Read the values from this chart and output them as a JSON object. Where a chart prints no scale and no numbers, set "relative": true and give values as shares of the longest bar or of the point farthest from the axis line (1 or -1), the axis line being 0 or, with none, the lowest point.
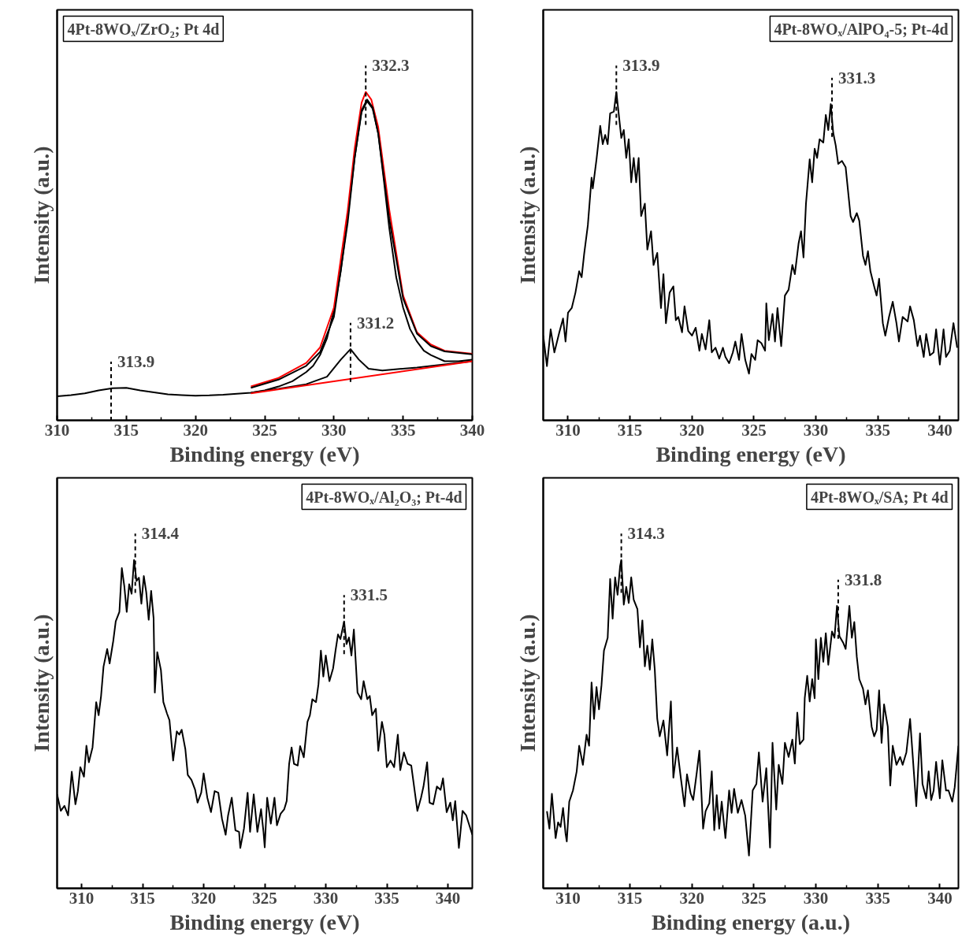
{
  "chart_data": [
    {
      "type": "line",
      "title": "4Pt-8WOₓ/ZrO₂; Pt 4d",
      "xlabel": "Binding energy (eV)",
      "ylabel": "Intensity (a.u.)",
      "relative": true,
      "xlim": [
        310,
        340
      ],
      "xticks": [
        310,
        315,
        320,
        325,
        330,
        335,
        340
      ],
      "series": [
        {
          "color": "#000000",
          "x": [
            310,
            311,
            312,
            313,
            314,
            315,
            316,
            317,
            318,
            319,
            320,
            321,
            322,
            323,
            324,
            325,
            326,
            327,
            328,
            328.5,
            329,
            329.5,
            330,
            330.5,
            331,
            331.5,
            332,
            332.4,
            332.8,
            333.2,
            333.6,
            334,
            334.5,
            335,
            335.5,
            336,
            336.5,
            337,
            338,
            339,
            340
          ],
          "values": [
            0.073,
            0.077,
            0.082,
            0.091,
            0.098,
            0.099,
            0.091,
            0.085,
            0.079,
            0.077,
            0.075,
            0.076,
            0.078,
            0.081,
            0.084,
            0.091,
            0.103,
            0.119,
            0.147,
            0.166,
            0.199,
            0.25,
            0.334,
            0.455,
            0.623,
            0.8,
            0.939,
            0.972,
            0.949,
            0.874,
            0.734,
            0.585,
            0.436,
            0.343,
            0.278,
            0.24,
            0.212,
            0.199,
            0.18,
            0.18,
            0.185
          ]
        },
        {
          "color": "#ff0000",
          "x": [
            324,
            326,
            328,
            329,
            330,
            331,
            331.5,
            332,
            332.3,
            332.7,
            333.2,
            334,
            335,
            336,
            337,
            338,
            340
          ],
          "values": [
            0.103,
            0.129,
            0.175,
            0.222,
            0.343,
            0.641,
            0.828,
            0.967,
            1.0,
            0.977,
            0.893,
            0.641,
            0.38,
            0.268,
            0.231,
            0.212,
            0.203
          ]
        },
        {
          "color": "#000000",
          "x": [
            324,
            326,
            328,
            329,
            330,
            331,
            331.5,
            332,
            332.4,
            332.8,
            333.2,
            334,
            335,
            336,
            337,
            338,
            340
          ],
          "values": [
            0.099,
            0.124,
            0.166,
            0.208,
            0.315,
            0.604,
            0.8,
            0.944,
            0.977,
            0.953,
            0.874,
            0.613,
            0.371,
            0.264,
            0.226,
            0.21,
            0.201
          ]
        },
        {
          "color": "#000000",
          "x": [
            324,
            326,
            328,
            329.5,
            330.5,
            331.2,
            331.8,
            332.5,
            333.5,
            336,
            340
          ],
          "values": [
            0.084,
            0.096,
            0.11,
            0.133,
            0.185,
            0.217,
            0.185,
            0.157,
            0.152,
            0.161,
            0.18
          ]
        },
        {
          "color": "#ff0000",
          "x": [
            324,
            340
          ],
          "values": [
            0.082,
            0.18
          ]
        }
      ],
      "annotations": [
        {
          "text": "313.9",
          "x": 313.9,
          "y": 0.099
        },
        {
          "text": "331.2",
          "x": 331.2,
          "y": 0.217
        },
        {
          "text": "332.3",
          "x": 332.3,
          "y": 1.0
        }
      ]
    },
    {
      "type": "line",
      "title": "4Pt-8WOₓ/AlPO₄-5; Pt-4d",
      "xlabel": "Binding energy (eV)",
      "ylabel": "Intensity (a.u.)",
      "relative": true,
      "xlim": [
        308,
        341.5
      ],
      "xticks": [
        310,
        315,
        320,
        325,
        330,
        335,
        340
      ],
      "series": [
        {
          "color": "#000000",
          "x": [
            308.0,
            308.3,
            308.6,
            308.9,
            309.3,
            309.6,
            309.8,
            310.0,
            310.3,
            310.6,
            310.9,
            311.1,
            311.3,
            311.6,
            311.9,
            312.0,
            312.3,
            312.6,
            312.8,
            313.0,
            313.2,
            313.4,
            313.7,
            313.9,
            314.1,
            314.3,
            314.5,
            314.7,
            314.9,
            315.1,
            315.3,
            315.5,
            315.7,
            315.9,
            316.2,
            316.4,
            316.7,
            316.9,
            317.2,
            317.5,
            317.7,
            317.9,
            318.2,
            318.5,
            318.7,
            318.9,
            319.2,
            319.4,
            319.7,
            320.0,
            320.3,
            320.6,
            320.8,
            321.1,
            321.4,
            321.6,
            321.9,
            322.2,
            322.5,
            322.7,
            323.0,
            323.3,
            323.5,
            323.8,
            324.0,
            324.3,
            324.6,
            324.8,
            325.1,
            325.3,
            325.6,
            325.9,
            326.0,
            326.2,
            326.5,
            326.7,
            326.9,
            327.2,
            327.5,
            327.8,
            328.1,
            328.3,
            328.6,
            328.8,
            329.0,
            329.2,
            329.5,
            329.7,
            329.9,
            330.1,
            330.3,
            330.6,
            330.8,
            331.0,
            331.2,
            331.4,
            331.6,
            331.8,
            332.1,
            332.4,
            332.8,
            333.0,
            333.3,
            333.5,
            333.8,
            334.0,
            334.2,
            334.4,
            334.7,
            334.9,
            335.1,
            335.4,
            335.6,
            335.9,
            336.2,
            336.5,
            336.7,
            337.0,
            337.4,
            337.6,
            337.9,
            338.2,
            338.4,
            338.7,
            338.9,
            339.2,
            339.5,
            339.7,
            340.0,
            340.3,
            340.5,
            340.8,
            341.1,
            341.4
          ],
          "values": [
            0.258,
            0.165,
            0.277,
            0.207,
            0.268,
            0.31,
            0.24,
            0.328,
            0.342,
            0.389,
            0.454,
            0.436,
            0.506,
            0.594,
            0.739,
            0.706,
            0.795,
            0.897,
            0.841,
            0.869,
            0.841,
            0.935,
            0.94,
            1.0,
            0.93,
            0.86,
            0.884,
            0.799,
            0.856,
            0.725,
            0.799,
            0.725,
            0.799,
            0.622,
            0.66,
            0.52,
            0.576,
            0.473,
            0.51,
            0.342,
            0.445,
            0.296,
            0.389,
            0.408,
            0.305,
            0.315,
            0.268,
            0.347,
            0.272,
            0.258,
            0.282,
            0.212,
            0.263,
            0.216,
            0.305,
            0.207,
            0.221,
            0.188,
            0.221,
            0.193,
            0.174,
            0.207,
            0.24,
            0.184,
            0.263,
            0.184,
            0.142,
            0.202,
            0.184,
            0.244,
            0.235,
            0.212,
            0.356,
            0.244,
            0.324,
            0.24,
            0.342,
            0.226,
            0.38,
            0.398,
            0.473,
            0.445,
            0.538,
            0.576,
            0.496,
            0.66,
            0.795,
            0.725,
            0.827,
            0.799,
            0.856,
            0.846,
            0.93,
            0.884,
            0.963,
            0.875,
            0.837,
            0.781,
            0.79,
            0.771,
            0.622,
            0.604,
            0.631,
            0.608,
            0.501,
            0.473,
            0.515,
            0.454,
            0.408,
            0.38,
            0.431,
            0.296,
            0.258,
            0.315,
            0.361,
            0.296,
            0.24,
            0.315,
            0.301,
            0.347,
            0.305,
            0.226,
            0.258,
            0.193,
            0.263,
            0.198,
            0.207,
            0.277,
            0.17,
            0.277,
            0.193,
            0.212,
            0.296,
            0.221
          ]
        }
      ],
      "annotations": [
        {
          "text": "313.9",
          "x": 313.9,
          "y": 1.0
        },
        {
          "text": "331.3",
          "x": 331.3,
          "y": 0.963
        }
      ]
    },
    {
      "type": "line",
      "title": "4Pt-8WOₓ/Al₂O₃; Pt-4d",
      "xlabel": "Binding energy (eV)",
      "ylabel": "Intensity (a.u.)",
      "relative": true,
      "xlim": [
        308,
        342
      ],
      "xticks": [
        310,
        315,
        320,
        325,
        330,
        335,
        340
      ],
      "series": [
        {
          "color": "#000000",
          "x": [
            308.0,
            308.3,
            308.6,
            308.9,
            309.2,
            309.5,
            309.7,
            309.9,
            310.2,
            310.4,
            310.6,
            310.9,
            311.2,
            311.4,
            311.6,
            311.8,
            312.1,
            312.3,
            312.6,
            312.8,
            313.1,
            313.3,
            313.5,
            313.7,
            313.9,
            314.1,
            314.3,
            314.5,
            314.7,
            314.9,
            315.1,
            315.3,
            315.5,
            315.7,
            315.9,
            316.0,
            316.2,
            316.5,
            316.7,
            317.0,
            317.2,
            317.5,
            317.8,
            318.0,
            318.2,
            318.5,
            318.7,
            319.0,
            319.3,
            319.5,
            319.8,
            320.0,
            320.3,
            320.6,
            320.9,
            321.2,
            321.5,
            321.8,
            322.0,
            322.3,
            322.6,
            322.9,
            323.0,
            323.3,
            323.6,
            323.8,
            324.1,
            324.4,
            324.7,
            324.9,
            325.0,
            325.2,
            325.5,
            325.8,
            326.0,
            326.3,
            326.6,
            326.8,
            327.0,
            327.2,
            327.4,
            327.7,
            327.9,
            328.2,
            328.5,
            328.7,
            328.9,
            329.2,
            329.4,
            329.6,
            329.8,
            330.0,
            330.3,
            330.6,
            330.8,
            331.0,
            331.2,
            331.5,
            331.7,
            331.9,
            332.1,
            332.3,
            332.6,
            332.9,
            333.1,
            333.4,
            333.6,
            333.8,
            334.1,
            334.3,
            334.6,
            334.8,
            335.0,
            335.3,
            335.6,
            335.9,
            336.1,
            336.4,
            336.7,
            337.0,
            337.3,
            337.5,
            337.8,
            338.0,
            338.3,
            338.5,
            338.8,
            339.1,
            339.4,
            339.6,
            339.9,
            340.2,
            340.4,
            340.6,
            340.9,
            341.2,
            341.5,
            342.0
          ],
          "values": [
            0.286,
            0.236,
            0.251,
            0.222,
            0.355,
            0.256,
            0.296,
            0.369,
            0.34,
            0.434,
            0.384,
            0.429,
            0.567,
            0.527,
            0.586,
            0.675,
            0.729,
            0.685,
            0.754,
            0.813,
            0.842,
            0.975,
            0.921,
            0.842,
            0.926,
            0.897,
            1.0,
            0.936,
            0.946,
            0.867,
            0.951,
            0.901,
            0.818,
            0.906,
            0.823,
            0.596,
            0.719,
            0.665,
            0.567,
            0.532,
            0.512,
            0.389,
            0.478,
            0.468,
            0.483,
            0.424,
            0.345,
            0.33,
            0.3,
            0.261,
            0.291,
            0.35,
            0.276,
            0.232,
            0.296,
            0.291,
            0.212,
            0.163,
            0.222,
            0.276,
            0.177,
            0.172,
            0.123,
            0.182,
            0.291,
            0.172,
            0.286,
            0.172,
            0.241,
            0.172,
            0.125,
            0.276,
            0.197,
            0.276,
            0.192,
            0.227,
            0.241,
            0.266,
            0.379,
            0.429,
            0.379,
            0.374,
            0.433,
            0.399,
            0.507,
            0.527,
            0.576,
            0.567,
            0.621,
            0.724,
            0.645,
            0.709,
            0.631,
            0.67,
            0.724,
            0.773,
            0.759,
            0.813,
            0.744,
            0.764,
            0.709,
            0.788,
            0.596,
            0.576,
            0.631,
            0.576,
            0.586,
            0.527,
            0.547,
            0.419,
            0.507,
            0.468,
            0.369,
            0.389,
            0.369,
            0.468,
            0.36,
            0.414,
            0.379,
            0.374,
            0.291,
            0.236,
            0.276,
            0.31,
            0.384,
            0.261,
            0.256,
            0.31,
            0.3,
            0.335,
            0.232,
            0.261,
            0.207,
            0.266,
            0.123,
            0.236,
            0.222,
            0.163
          ]
        }
      ],
      "annotations": [
        {
          "text": "314.4",
          "x": 314.4,
          "y": 1.0
        },
        {
          "text": "331.5",
          "x": 331.5,
          "y": 0.813
        }
      ]
    },
    {
      "type": "line",
      "title": "4Pt-8WOₓ/SA; Pt 4d",
      "xlabel": "Binding energy (a.u.)",
      "ylabel": "Intensity (a.u.)",
      "relative": true,
      "xlim": [
        308,
        341.5
      ],
      "xticks": [
        310,
        315,
        320,
        325,
        330,
        335,
        340
      ],
      "series": [
        {
          "color": "#000000",
          "x": [
            308.3,
            308.5,
            308.7,
            309.0,
            309.2,
            309.4,
            309.6,
            309.8,
            309.9,
            310.1,
            310.4,
            310.7,
            310.9,
            311.2,
            311.5,
            311.7,
            311.9,
            312.1,
            312.3,
            312.5,
            312.7,
            312.9,
            313.2,
            313.4,
            313.6,
            313.8,
            314.0,
            314.2,
            314.3,
            314.5,
            314.7,
            314.9,
            315.1,
            315.3,
            315.6,
            315.8,
            316.0,
            316.2,
            316.4,
            316.6,
            316.8,
            317.0,
            317.2,
            317.4,
            317.7,
            318.0,
            318.3,
            318.5,
            318.8,
            319.1,
            319.4,
            319.6,
            319.9,
            320.1,
            320.4,
            320.6,
            320.9,
            321.1,
            321.4,
            321.6,
            321.8,
            322.0,
            322.2,
            322.4,
            322.7,
            323.0,
            323.2,
            323.4,
            323.7,
            324.0,
            324.3,
            324.6,
            324.9,
            325.2,
            325.4,
            325.7,
            326.0,
            326.3,
            326.5,
            326.8,
            327.0,
            327.3,
            327.5,
            327.8,
            328.1,
            328.3,
            328.5,
            328.7,
            329.0,
            329.1,
            329.3,
            329.5,
            329.7,
            329.9,
            330.0,
            330.2,
            330.4,
            330.6,
            330.8,
            331.0,
            331.3,
            331.5,
            331.7,
            331.9,
            332.2,
            332.4,
            332.7,
            332.9,
            333.1,
            333.3,
            333.5,
            333.8,
            334.0,
            334.2,
            334.5,
            334.7,
            334.9,
            335.1,
            335.3,
            335.5,
            335.8,
            336.0,
            336.2,
            336.5,
            336.8,
            337.0,
            337.3,
            337.6,
            337.9,
            338.1,
            338.4,
            338.6,
            338.9,
            339.1,
            339.3,
            339.5,
            339.7,
            340.0,
            340.2,
            340.5,
            340.7,
            341.0,
            341.2,
            341.5
          ],
          "values": [
            0.235,
            0.182,
            0.288,
            0.153,
            0.201,
            0.187,
            0.245,
            0.167,
            0.143,
            0.264,
            0.298,
            0.356,
            0.434,
            0.376,
            0.468,
            0.434,
            0.627,
            0.516,
            0.613,
            0.545,
            0.618,
            0.724,
            0.763,
            0.942,
            0.821,
            0.947,
            0.894,
            0.981,
            1.0,
            0.864,
            0.918,
            0.869,
            0.947,
            0.879,
            0.85,
            0.734,
            0.816,
            0.676,
            0.739,
            0.666,
            0.758,
            0.666,
            0.516,
            0.463,
            0.511,
            0.405,
            0.569,
            0.337,
            0.429,
            0.337,
            0.25,
            0.347,
            0.288,
            0.269,
            0.356,
            0.419,
            0.182,
            0.235,
            0.259,
            0.356,
            0.177,
            0.284,
            0.182,
            0.264,
            0.153,
            0.298,
            0.23,
            0.303,
            0.23,
            0.269,
            0.221,
            0.1,
            0.298,
            0.318,
            0.414,
            0.264,
            0.366,
            0.124,
            0.443,
            0.24,
            0.376,
            0.318,
            0.443,
            0.4,
            0.453,
            0.38,
            0.535,
            0.439,
            0.453,
            0.579,
            0.647,
            0.569,
            0.637,
            0.579,
            0.758,
            0.637,
            0.763,
            0.69,
            0.777,
            0.681,
            0.782,
            0.763,
            0.86,
            0.768,
            0.748,
            0.729,
            0.86,
            0.763,
            0.811,
            0.705,
            0.637,
            0.608,
            0.56,
            0.603,
            0.492,
            0.463,
            0.482,
            0.603,
            0.443,
            0.56,
            0.492,
            0.313,
            0.434,
            0.376,
            0.4,
            0.376,
            0.414,
            0.516,
            0.356,
            0.25,
            0.472,
            0.318,
            0.274,
            0.356,
            0.269,
            0.298,
            0.385,
            0.274,
            0.39,
            0.298,
            0.298,
            0.264,
            0.308,
            0.434
          ]
        }
      ],
      "annotations": [
        {
          "text": "314.3",
          "x": 314.3,
          "y": 1.0
        },
        {
          "text": "331.8",
          "x": 331.8,
          "y": 0.86
        }
      ]
    }
  ]
}
